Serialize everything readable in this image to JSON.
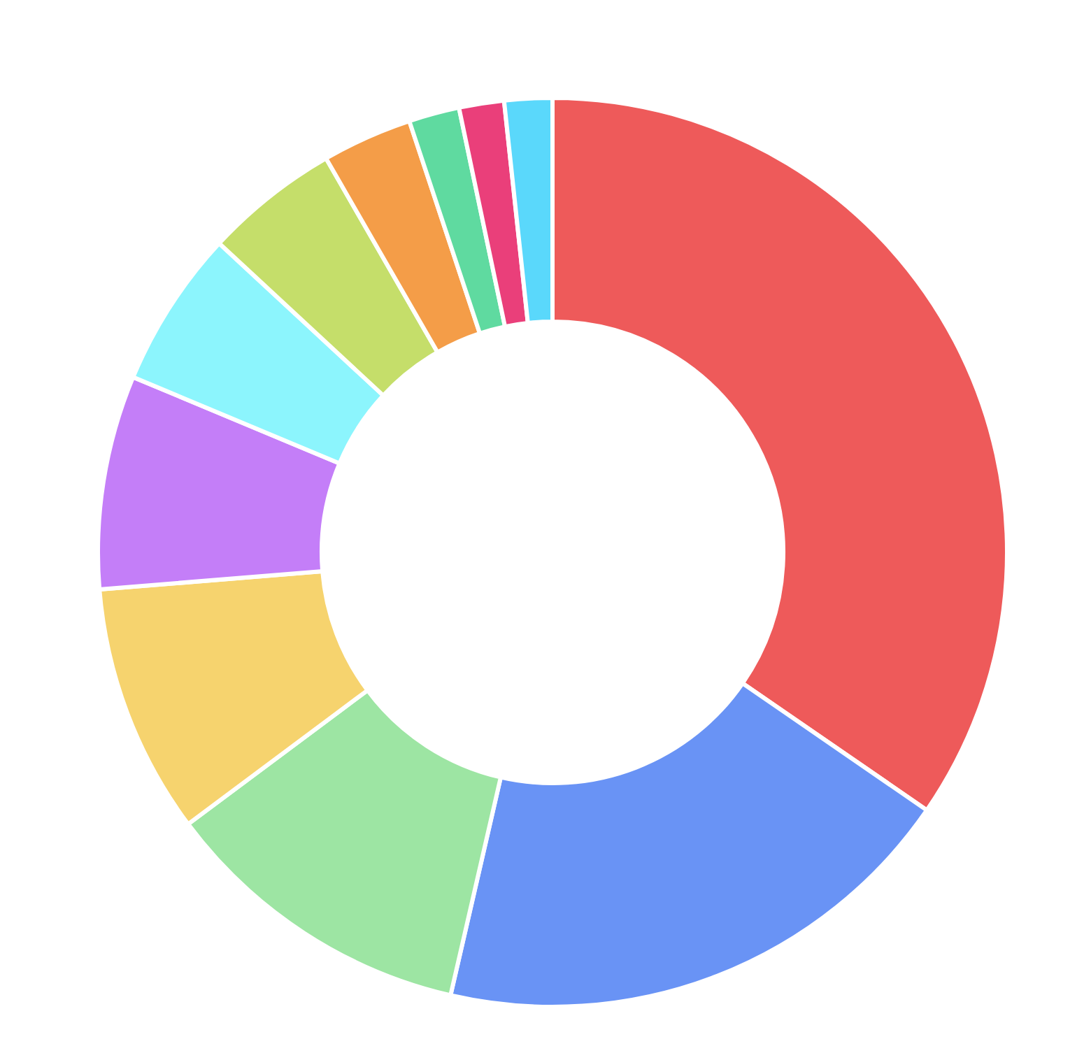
{
  "chart_data": {
    "type": "donut",
    "categories": [
      null,
      null,
      null,
      null,
      null,
      null,
      null,
      null,
      null,
      null,
      null
    ],
    "values": [
      34.6,
      19.0,
      11.2,
      8.9,
      7.6,
      5.6,
      4.8,
      3.2,
      1.8,
      1.6,
      1.7
    ],
    "colors": [
      "#ee5a5a",
      "#6993f5",
      "#9de5a3",
      "#f6d36e",
      "#c47ef8",
      "#8cf5fd",
      "#c5de6a",
      "#f49d48",
      "#5fdaa0",
      "#ea3f7a",
      "#5ad8fb"
    ],
    "legend": false
  }
}
